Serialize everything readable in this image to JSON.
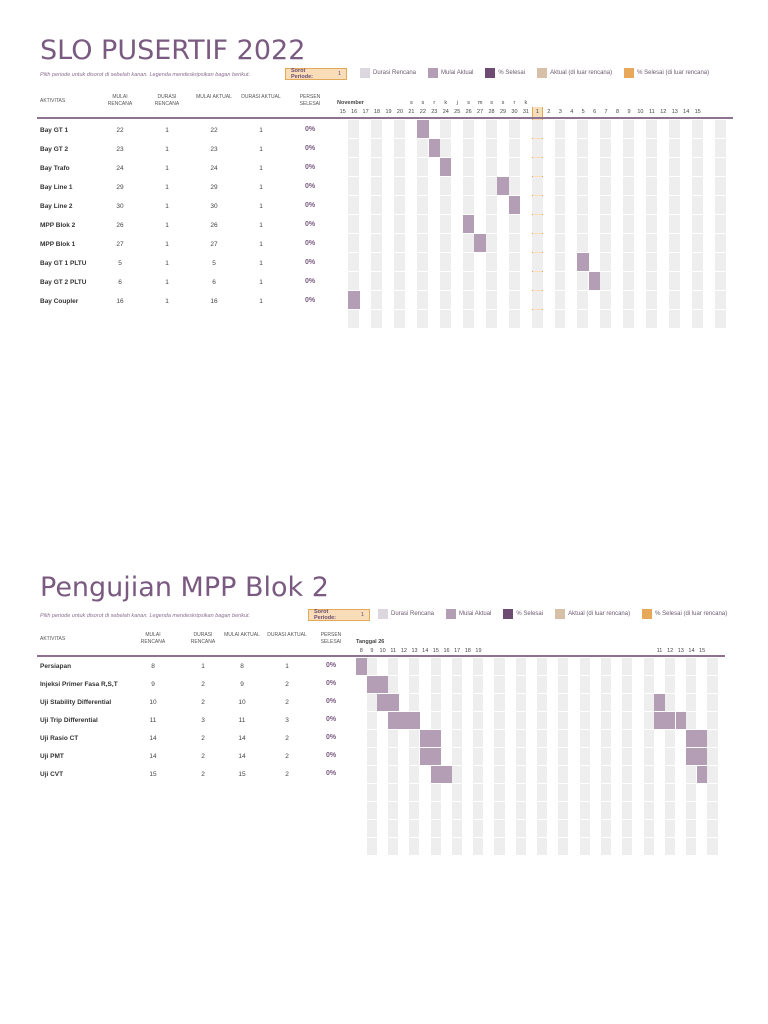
{
  "colors": {
    "durasi_rencana": "#dcd7de",
    "mulai_aktual": "#b49eb6",
    "persen_selesai": "#6e4b72",
    "aktual_luar": "#d8bfa8",
    "persen_luar": "#e8a85a",
    "highlight": "#f8dfb9"
  },
  "sections": [
    {
      "title": "SLO PUSERTIF 2022",
      "hint": "Pilih periode untuk disorot di sebelah kanan.  Legenda mendeskripsikan bagan berikut.",
      "sorot_label": "Sorot Periode:",
      "sorot_value": "1",
      "legend": [
        "Durasi Rencana",
        "Mulai Aktual",
        "% Selesai",
        "Aktual (di luar rencana)",
        "% Selesai (di luar rencana)"
      ],
      "headers": {
        "aktivitas": "AKTIVITAS",
        "mulai_rencana": "MULAI RENCANA",
        "durasi_rencana": "DURASI RENCANA",
        "mulai_aktual": "MULAI AKTUAL",
        "durasi_aktual": "DURASI AKTUAL",
        "persen": "PERSEN SELESAI"
      },
      "period_label": "November",
      "weekdays": [
        "",
        "",
        "",
        "",
        "",
        "",
        "s",
        "s",
        "r",
        "k",
        "j",
        "s",
        "m",
        "s",
        "s",
        "r",
        "k",
        "",
        "",
        "",
        "",
        "",
        "",
        "",
        "",
        "",
        "",
        "",
        "",
        "",
        "",
        "",
        "",
        ""
      ],
      "days": [
        "15",
        "16",
        "17",
        "18",
        "19",
        "20",
        "21",
        "22",
        "23",
        "24",
        "25",
        "26",
        "27",
        "28",
        "29",
        "30",
        "31",
        "1",
        "2",
        "3",
        "4",
        "5",
        "6",
        "7",
        "8",
        "9",
        "10",
        "11",
        "12",
        "13",
        "14",
        "15",
        "",
        ""
      ],
      "highlight_day_index": 17,
      "rows": [
        {
          "name": "Bay GT 1",
          "mulai_rencana": "22",
          "durasi_rencana": "1",
          "mulai_aktual": "22",
          "durasi_aktual": "1",
          "persen": "0%"
        },
        {
          "name": "Bay GT 2",
          "mulai_rencana": "23",
          "durasi_rencana": "1",
          "mulai_aktual": "23",
          "durasi_aktual": "1",
          "persen": "0%"
        },
        {
          "name": "Bay Trafo",
          "mulai_rencana": "24",
          "durasi_rencana": "1",
          "mulai_aktual": "24",
          "durasi_aktual": "1",
          "persen": "0%"
        },
        {
          "name": "Bay Line 1",
          "mulai_rencana": "29",
          "durasi_rencana": "1",
          "mulai_aktual": "29",
          "durasi_aktual": "1",
          "persen": "0%"
        },
        {
          "name": "Bay Line 2",
          "mulai_rencana": "30",
          "durasi_rencana": "1",
          "mulai_aktual": "30",
          "durasi_aktual": "1",
          "persen": "0%"
        },
        {
          "name": "MPP Blok 2",
          "mulai_rencana": "26",
          "durasi_rencana": "1",
          "mulai_aktual": "26",
          "durasi_aktual": "1",
          "persen": "0%"
        },
        {
          "name": "MPP Blok 1",
          "mulai_rencana": "27",
          "durasi_rencana": "1",
          "mulai_aktual": "27",
          "durasi_aktual": "1",
          "persen": "0%"
        },
        {
          "name": "Bay GT 1 PLTU",
          "mulai_rencana": "5",
          "durasi_rencana": "1",
          "mulai_aktual": "5",
          "durasi_aktual": "1",
          "persen": "0%"
        },
        {
          "name": "Bay GT 2 PLTU",
          "mulai_rencana": "6",
          "durasi_rencana": "1",
          "mulai_aktual": "6",
          "durasi_aktual": "1",
          "persen": "0%"
        },
        {
          "name": "Bay Coupler",
          "mulai_rencana": "16",
          "durasi_rencana": "1",
          "mulai_aktual": "16",
          "durasi_aktual": "1",
          "persen": "0%"
        }
      ]
    },
    {
      "title": "Pengujian MPP Blok 2",
      "hint": "Pilih periode untuk disorot di sebelah kanan.  Legenda mendeskripsikan bagan berikut.",
      "sorot_label": "Sorot Periode:",
      "sorot_value": "1",
      "legend": [
        "Durasi Rencana",
        "Mulai Aktual",
        "% Selesai",
        "Aktual (di luar rencana)",
        "% Selesai (di luar rencana)"
      ],
      "headers": {
        "aktivitas": "AKTIVITAS",
        "mulai_rencana": "MULAI RENCANA",
        "durasi_rencana": "DURASI RENCANA",
        "mulai_aktual": "MULAI AKTUAL",
        "durasi_aktual": "DURASI AKTUAL",
        "persen": "PERSEN SELESAI"
      },
      "period_label": "Tanggal 26",
      "weekdays": [],
      "days": [
        "8",
        "9",
        "10",
        "11",
        "12",
        "13",
        "14",
        "15",
        "16",
        "17",
        "18",
        "19",
        "",
        "",
        "",
        "",
        "",
        "",
        "",
        "",
        "",
        "",
        "",
        "",
        "",
        "",
        "",
        "",
        "11",
        "12",
        "13",
        "14",
        "15",
        ""
      ],
      "highlight_day_index": -1,
      "rows": [
        {
          "name": "Persiapan",
          "mulai_rencana": "8",
          "durasi_rencana": "1",
          "mulai_aktual": "8",
          "durasi_aktual": "1",
          "persen": "0%"
        },
        {
          "name": "Injeksi Primer Fasa R,S,T",
          "mulai_rencana": "9",
          "durasi_rencana": "2",
          "mulai_aktual": "9",
          "durasi_aktual": "2",
          "persen": "0%"
        },
        {
          "name": "Uji Stability Differential",
          "mulai_rencana": "10",
          "durasi_rencana": "2",
          "mulai_aktual": "10",
          "durasi_aktual": "2",
          "persen": "0%"
        },
        {
          "name": "Uji Trip Differential",
          "mulai_rencana": "11",
          "durasi_rencana": "3",
          "mulai_aktual": "11",
          "durasi_aktual": "3",
          "persen": "0%"
        },
        {
          "name": "Uji Rasio CT",
          "mulai_rencana": "14",
          "durasi_rencana": "2",
          "mulai_aktual": "14",
          "durasi_aktual": "2",
          "persen": "0%"
        },
        {
          "name": "Uji PMT",
          "mulai_rencana": "14",
          "durasi_rencana": "2",
          "mulai_aktual": "14",
          "durasi_aktual": "2",
          "persen": "0%"
        },
        {
          "name": "Uji CVT",
          "mulai_rencana": "15",
          "durasi_rencana": "2",
          "mulai_aktual": "15",
          "durasi_aktual": "2",
          "persen": "0%"
        }
      ]
    }
  ]
}
